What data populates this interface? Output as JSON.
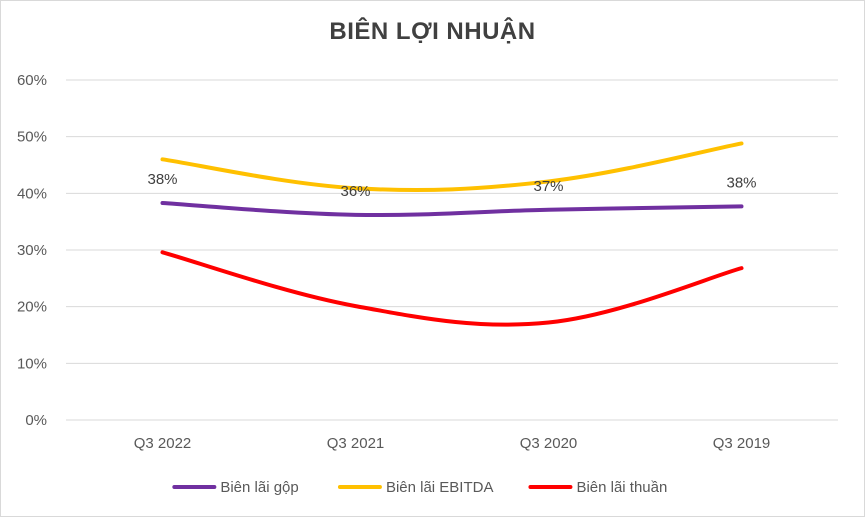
{
  "chart_data": {
    "type": "line",
    "title": "BIÊN LỢI NHUẬN",
    "categories": [
      "Q3 2022",
      "Q3 2021",
      "Q3 2020",
      "Q3 2019"
    ],
    "ylim": [
      0,
      0.6
    ],
    "yticks": [
      0,
      0.1,
      0.2,
      0.3,
      0.4,
      0.5,
      0.6
    ],
    "ytick_labels": [
      "0%",
      "10%",
      "20%",
      "30%",
      "40%",
      "50%",
      "60%"
    ],
    "grid": true,
    "legend_position": "bottom",
    "series": [
      {
        "name": "Biên lãi gộp",
        "color": "#7030a0",
        "values": [
          0.383,
          0.362,
          0.371,
          0.377
        ],
        "data_labels": [
          "38%",
          "36%",
          "37%",
          "38%"
        ]
      },
      {
        "name": "Biên lãi EBITDA",
        "color": "#ffc000",
        "values": [
          0.46,
          0.409,
          0.421,
          0.488
        ]
      },
      {
        "name": "Biên lãi thuần",
        "color": "#ff0000",
        "values": [
          0.296,
          0.201,
          0.172,
          0.268
        ]
      }
    ]
  }
}
